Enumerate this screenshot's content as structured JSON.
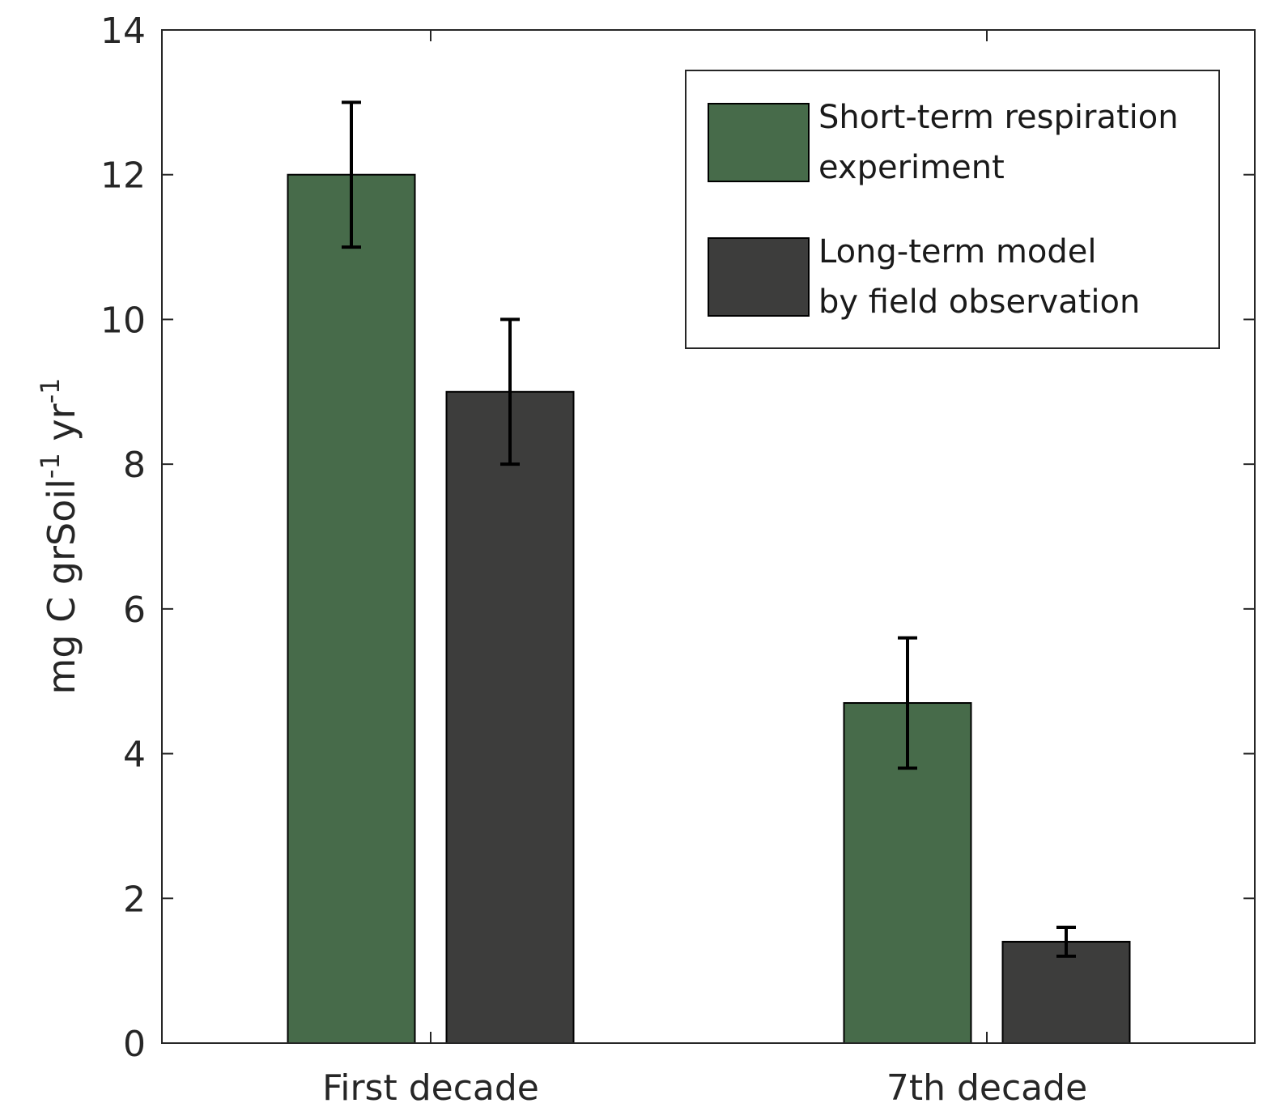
{
  "chart_data": {
    "type": "bar",
    "categories": [
      "First decade",
      "7th decade"
    ],
    "series": [
      {
        "name": "Short-term respiration experiment",
        "legend_lines": [
          "Short-term respiration",
          "experiment"
        ],
        "color": "#476b4a",
        "values": [
          12,
          4.7
        ],
        "err_low": [
          11,
          3.8
        ],
        "err_high": [
          13,
          5.6
        ]
      },
      {
        "name": "Long-term model by field observation",
        "legend_lines": [
          "Long-term model",
          "by field observation"
        ],
        "color": "#3d3d3c",
        "values": [
          9,
          1.4
        ],
        "err_low": [
          8,
          1.2
        ],
        "err_high": [
          10,
          1.6
        ]
      }
    ],
    "ylabel": {
      "parts": [
        {
          "text": "mg C grSoil",
          "sup": false
        },
        {
          "text": "-1",
          "sup": true
        },
        {
          "text": " yr",
          "sup": false
        },
        {
          "text": "-1",
          "sup": true
        }
      ]
    },
    "xlabel": "",
    "ylim": [
      0,
      14
    ],
    "yticks": [
      0,
      2,
      4,
      6,
      8,
      10,
      12,
      14
    ],
    "grid": false,
    "legend_position": "top-right",
    "box": true
  }
}
